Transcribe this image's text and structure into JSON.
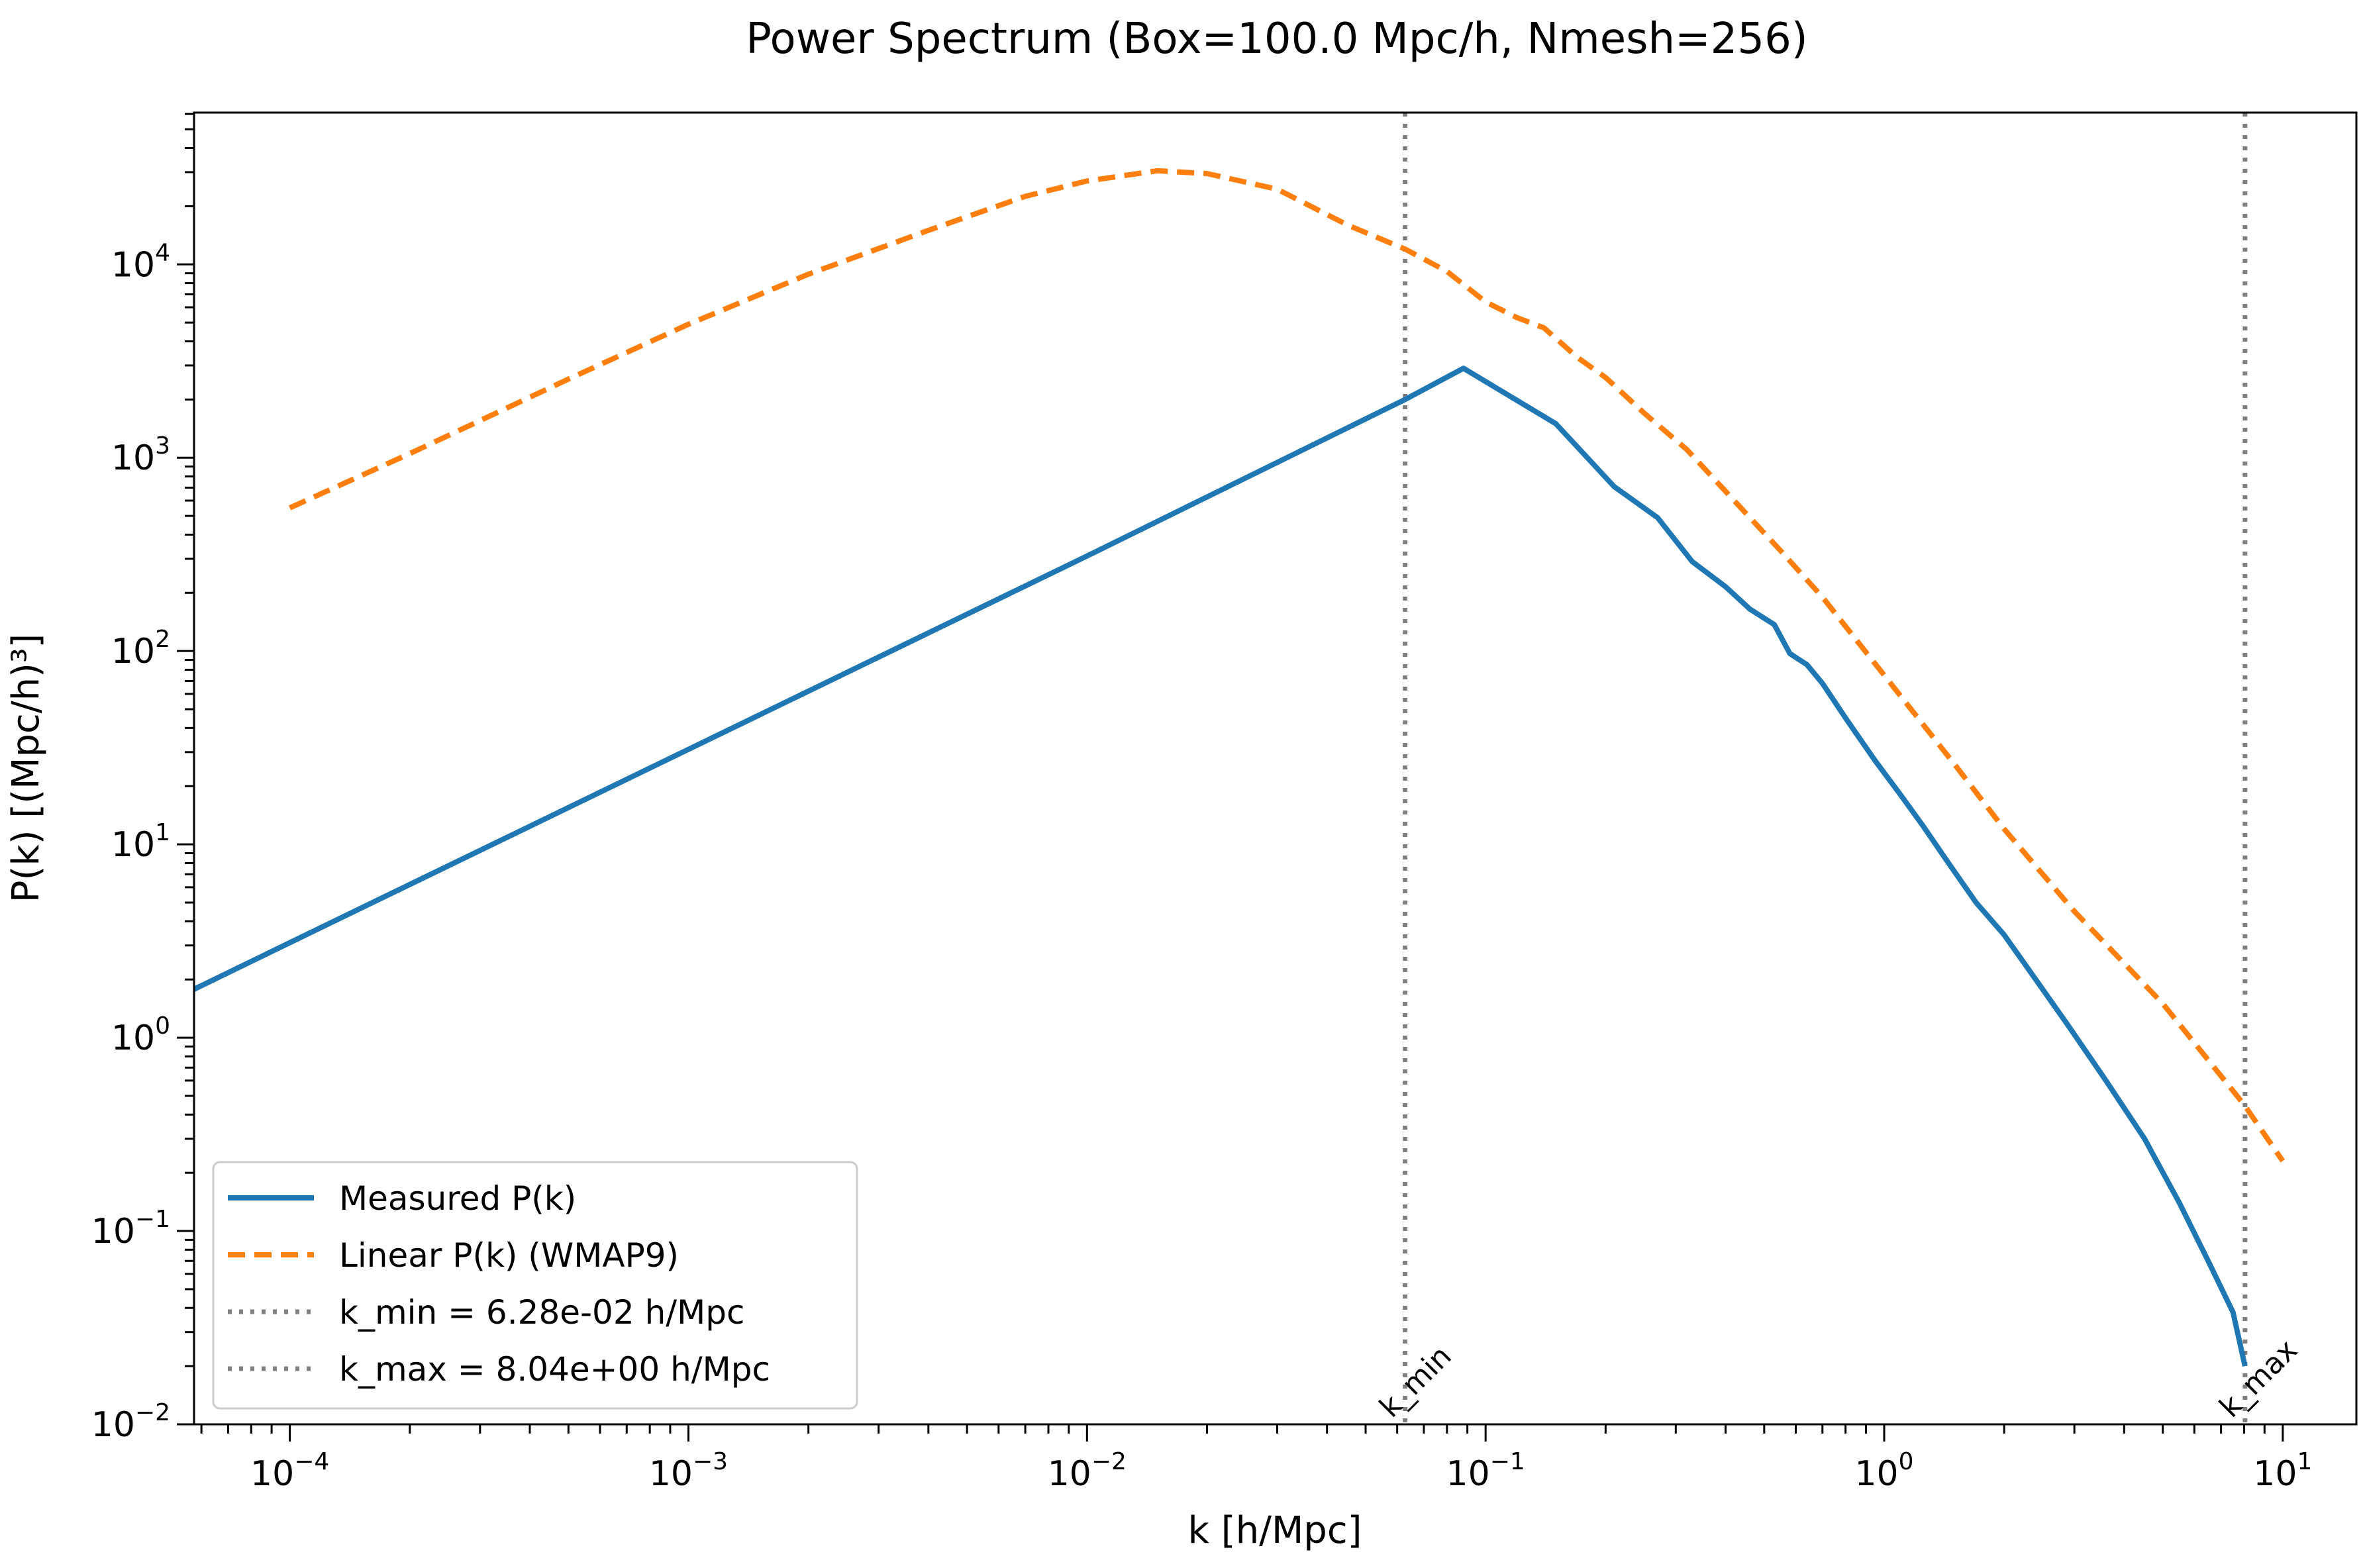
{
  "chart_data": {
    "type": "line",
    "title": "Power Spectrum (Box=100.0 Mpc/h, Nmesh=256)",
    "xlabel": "k [h/Mpc]",
    "ylabel": "P(k) [(Mpc/h)³]",
    "xscale": "log",
    "yscale": "log",
    "xlim": [
      5.75e-05,
      15.3
    ],
    "ylim": [
      0.01,
      61000
    ],
    "grid": false,
    "legend_position": "lower-left",
    "xticks": [
      {
        "value": 0.0001,
        "base": "10",
        "exp": "−4"
      },
      {
        "value": 0.001,
        "base": "10",
        "exp": "−3"
      },
      {
        "value": 0.01,
        "base": "10",
        "exp": "−2"
      },
      {
        "value": 0.1,
        "base": "10",
        "exp": "−1"
      },
      {
        "value": 1,
        "base": "10",
        "exp": "0"
      },
      {
        "value": 10,
        "base": "10",
        "exp": "1"
      }
    ],
    "yticks": [
      {
        "value": 0.01,
        "base": "10",
        "exp": "−2"
      },
      {
        "value": 0.1,
        "base": "10",
        "exp": "−1"
      },
      {
        "value": 1,
        "base": "10",
        "exp": "0"
      },
      {
        "value": 10,
        "base": "10",
        "exp": "1"
      },
      {
        "value": 100,
        "base": "10",
        "exp": "2"
      },
      {
        "value": 1000,
        "base": "10",
        "exp": "3"
      },
      {
        "value": 10000,
        "base": "10",
        "exp": "4"
      }
    ],
    "series": [
      {
        "name": "Measured P(k)",
        "color": "#1f77b4",
        "style": "solid",
        "points": [
          [
            5.75e-05,
            1.78
          ],
          [
            0.0001,
            3.1
          ],
          [
            0.001,
            31
          ],
          [
            0.01,
            310
          ],
          [
            0.0628,
            2000
          ],
          [
            0.088,
            2900
          ],
          [
            0.15,
            1500
          ],
          [
            0.21,
            710
          ],
          [
            0.27,
            490
          ],
          [
            0.33,
            290
          ],
          [
            0.4,
            215
          ],
          [
            0.46,
            165
          ],
          [
            0.53,
            137
          ],
          [
            0.58,
            97
          ],
          [
            0.64,
            85
          ],
          [
            0.7,
            68
          ],
          [
            0.8,
            45
          ],
          [
            0.95,
            27
          ],
          [
            1.1,
            18
          ],
          [
            1.25,
            12.5
          ],
          [
            1.45,
            8
          ],
          [
            1.7,
            5
          ],
          [
            2.0,
            3.4
          ],
          [
            2.4,
            2.0
          ],
          [
            2.9,
            1.15
          ],
          [
            3.6,
            0.6
          ],
          [
            4.5,
            0.3
          ],
          [
            5.5,
            0.14
          ],
          [
            6.5,
            0.07
          ],
          [
            7.5,
            0.038
          ],
          [
            8.04,
            0.02
          ]
        ]
      },
      {
        "name": "Linear P(k) (WMAP9)",
        "color": "#ff7f0e",
        "style": "dashed",
        "points": [
          [
            0.0001,
            550
          ],
          [
            0.0002,
            1050
          ],
          [
            0.0005,
            2550
          ],
          [
            0.001,
            4900
          ],
          [
            0.002,
            8900
          ],
          [
            0.004,
            15000
          ],
          [
            0.007,
            22500
          ],
          [
            0.01,
            27000
          ],
          [
            0.015,
            30500
          ],
          [
            0.02,
            29500
          ],
          [
            0.03,
            24500
          ],
          [
            0.045,
            16000
          ],
          [
            0.0628,
            12000
          ],
          [
            0.08,
            9200
          ],
          [
            0.1,
            6400
          ],
          [
            0.12,
            5300
          ],
          [
            0.14,
            4700
          ],
          [
            0.17,
            3300
          ],
          [
            0.2,
            2600
          ],
          [
            0.25,
            1700
          ],
          [
            0.32,
            1100
          ],
          [
            0.4,
            670
          ],
          [
            0.55,
            330
          ],
          [
            0.7,
            190
          ],
          [
            1.0,
            75
          ],
          [
            1.5,
            26
          ],
          [
            2.0,
            12
          ],
          [
            3.0,
            4.5
          ],
          [
            5.0,
            1.5
          ],
          [
            8.0,
            0.45
          ],
          [
            10.0,
            0.23
          ]
        ]
      }
    ],
    "vlines": [
      {
        "name": "k_min = 6.28e-02 h/Mpc",
        "value": 0.0628,
        "label": "k_min",
        "color": "#808080",
        "style": "dotted"
      },
      {
        "name": "k_max = 8.04e+00 h/Mpc",
        "value": 8.04,
        "label": "k_max",
        "color": "#808080",
        "style": "dotted"
      }
    ]
  }
}
